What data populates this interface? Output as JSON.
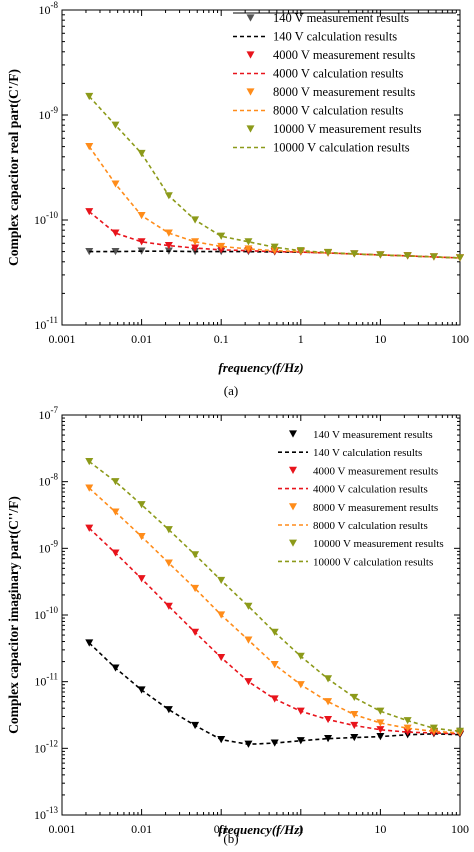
{
  "chart_data": [
    {
      "type": "scatter",
      "panel_caption": "(a)",
      "xlabel": "frequency(f/Hz)",
      "ylabel": "Complex capacitor real part(C'/F)",
      "xscale": "log",
      "yscale": "log",
      "xlim": [
        0.001,
        100
      ],
      "ylim": [
        1e-11,
        1e-08
      ],
      "x_tick_labels": [
        "0.001",
        "0.01",
        "0.1",
        "1",
        "10",
        "100"
      ],
      "y_tick_labels": [
        {
          "base": "10",
          "exp": "-8"
        },
        {
          "base": "10",
          "exp": "-9"
        },
        {
          "base": "10",
          "exp": "-10"
        },
        {
          "base": "10",
          "exp": "-11"
        }
      ],
      "legend_position": "top-right",
      "x": [
        0.0022,
        0.0047,
        0.01,
        0.022,
        0.047,
        0.1,
        0.22,
        0.47,
        1,
        2.2,
        4.7,
        10,
        22,
        47,
        100
      ],
      "series": [
        {
          "name": "140 V measurement results",
          "kind": "marker",
          "color": "#555555",
          "values": [
            5e-11,
            5e-11,
            5.05e-11,
            5.05e-11,
            5e-11,
            5e-11,
            5e-11,
            4.95e-11,
            4.95e-11,
            4.85e-11,
            4.75e-11,
            4.65e-11,
            4.55e-11,
            4.45e-11,
            4.35e-11
          ]
        },
        {
          "name": "140 V calculation results",
          "kind": "line",
          "color": "#000000",
          "values": [
            5e-11,
            5e-11,
            5.05e-11,
            5.05e-11,
            5e-11,
            5e-11,
            5e-11,
            4.95e-11,
            4.95e-11,
            4.85e-11,
            4.75e-11,
            4.65e-11,
            4.55e-11,
            4.45e-11,
            4.35e-11
          ]
        },
        {
          "name": "4000 V measurement results",
          "kind": "marker",
          "color": "#e8141c",
          "values": [
            1.2e-10,
            7.5e-11,
            6.2e-11,
            5.7e-11,
            5.4e-11,
            5.2e-11,
            5.1e-11,
            5e-11,
            4.95e-11,
            4.85e-11,
            4.75e-11,
            4.65e-11,
            4.55e-11,
            4.45e-11,
            4.35e-11
          ]
        },
        {
          "name": "4000 V calculation results",
          "kind": "line",
          "color": "#e8141c",
          "values": [
            1.2e-10,
            7.5e-11,
            6.2e-11,
            5.7e-11,
            5.4e-11,
            5.2e-11,
            5.1e-11,
            5e-11,
            4.95e-11,
            4.85e-11,
            4.75e-11,
            4.65e-11,
            4.55e-11,
            4.45e-11,
            4.35e-11
          ]
        },
        {
          "name": "8000 V measurement results",
          "kind": "marker",
          "color": "#ff8c1a",
          "values": [
            5e-10,
            2.2e-10,
            1.1e-10,
            7.5e-11,
            6.2e-11,
            5.6e-11,
            5.3e-11,
            5.1e-11,
            5e-11,
            4.85e-11,
            4.75e-11,
            4.65e-11,
            4.55e-11,
            4.45e-11,
            4.35e-11
          ]
        },
        {
          "name": "8000 V calculation results",
          "kind": "line",
          "color": "#ff8c1a",
          "values": [
            5e-10,
            2.2e-10,
            1.1e-10,
            7.5e-11,
            6.2e-11,
            5.6e-11,
            5.3e-11,
            5.1e-11,
            5e-11,
            4.85e-11,
            4.75e-11,
            4.65e-11,
            4.55e-11,
            4.45e-11,
            4.35e-11
          ]
        },
        {
          "name": "10000 V measurement results",
          "kind": "marker",
          "color": "#8c9a1a",
          "values": [
            1.5e-09,
            8e-10,
            4.3e-10,
            1.7e-10,
            1e-10,
            7e-11,
            6.2e-11,
            5.5e-11,
            5.1e-11,
            4.9e-11,
            4.75e-11,
            4.65e-11,
            4.55e-11,
            4.45e-11,
            4.35e-11
          ]
        },
        {
          "name": "10000 V calculation results",
          "kind": "line",
          "color": "#8c9a1a",
          "values": [
            1.5e-09,
            8e-10,
            4.3e-10,
            1.7e-10,
            1e-10,
            7e-11,
            6.2e-11,
            5.5e-11,
            5.1e-11,
            4.9e-11,
            4.75e-11,
            4.65e-11,
            4.55e-11,
            4.45e-11,
            4.35e-11
          ]
        }
      ]
    },
    {
      "type": "scatter",
      "panel_caption": "(b)",
      "xlabel": "frequency(f/Hz)",
      "ylabel": "Complex capacitor imaginary part(C''/F)",
      "xscale": "log",
      "yscale": "log",
      "xlim": [
        0.001,
        100
      ],
      "ylim": [
        1e-13,
        1e-07
      ],
      "x_tick_labels": [
        "0.001",
        "0.01",
        "0.1",
        "1",
        "10",
        "100"
      ],
      "y_tick_labels": [
        {
          "base": "10",
          "exp": "-7"
        },
        {
          "base": "10",
          "exp": "-8"
        },
        {
          "base": "10",
          "exp": "-9"
        },
        {
          "base": "10",
          "exp": "-10"
        },
        {
          "base": "10",
          "exp": "-11"
        },
        {
          "base": "10",
          "exp": "-12"
        },
        {
          "base": "10",
          "exp": "-13"
        }
      ],
      "legend_position": "top-right",
      "x": [
        0.0022,
        0.0047,
        0.01,
        0.022,
        0.047,
        0.1,
        0.22,
        0.47,
        1,
        2.2,
        4.7,
        10,
        22,
        47,
        100
      ],
      "series": [
        {
          "name": "140 V measurement results",
          "kind": "marker",
          "color": "#000000",
          "values": [
            3.8e-11,
            1.6e-11,
            7.5e-12,
            3.8e-12,
            2.2e-12,
            1.35e-12,
            1.15e-12,
            1.2e-12,
            1.3e-12,
            1.4e-12,
            1.45e-12,
            1.5e-12,
            1.6e-12,
            1.65e-12,
            1.6e-12
          ]
        },
        {
          "name": "140 V calculation results",
          "kind": "line",
          "color": "#000000",
          "values": [
            3.8e-11,
            1.6e-11,
            7.5e-12,
            3.8e-12,
            2.2e-12,
            1.35e-12,
            1.15e-12,
            1.2e-12,
            1.3e-12,
            1.4e-12,
            1.45e-12,
            1.5e-12,
            1.6e-12,
            1.65e-12,
            1.6e-12
          ]
        },
        {
          "name": "4000 V measurement results",
          "kind": "marker",
          "color": "#e8141c",
          "values": [
            2e-09,
            8.5e-10,
            3.5e-10,
            1.35e-10,
            5.5e-11,
            2.3e-11,
            1e-11,
            5.5e-12,
            3.6e-12,
            2.7e-12,
            2.2e-12,
            1.9e-12,
            1.75e-12,
            1.7e-12,
            1.65e-12
          ]
        },
        {
          "name": "4000 V calculation results",
          "kind": "line",
          "color": "#e8141c",
          "values": [
            2e-09,
            8.5e-10,
            3.5e-10,
            1.35e-10,
            5.5e-11,
            2.3e-11,
            1e-11,
            5.5e-12,
            3.6e-12,
            2.7e-12,
            2.2e-12,
            1.9e-12,
            1.75e-12,
            1.7e-12,
            1.65e-12
          ]
        },
        {
          "name": "8000 V measurement results",
          "kind": "marker",
          "color": "#ff8c1a",
          "values": [
            8e-09,
            3.5e-09,
            1.5e-09,
            6e-10,
            2.5e-10,
            1e-10,
            4.2e-11,
            1.8e-11,
            9e-12,
            5e-12,
            3.2e-12,
            2.4e-12,
            2e-12,
            1.8e-12,
            1.7e-12
          ]
        },
        {
          "name": "8000 V calculation results",
          "kind": "line",
          "color": "#ff8c1a",
          "values": [
            8e-09,
            3.5e-09,
            1.5e-09,
            6e-10,
            2.5e-10,
            1e-10,
            4.2e-11,
            1.8e-11,
            9e-12,
            5e-12,
            3.2e-12,
            2.4e-12,
            2e-12,
            1.8e-12,
            1.7e-12
          ]
        },
        {
          "name": "10000 V measurement results",
          "kind": "marker",
          "color": "#8c9a1a",
          "values": [
            2e-08,
            1e-08,
            4.5e-09,
            1.9e-09,
            8e-10,
            3.3e-10,
            1.35e-10,
            5.5e-11,
            2.4e-11,
            1.1e-11,
            5.8e-12,
            3.6e-12,
            2.6e-12,
            2e-12,
            1.8e-12
          ]
        },
        {
          "name": "10000 V calculation results",
          "kind": "line",
          "color": "#8c9a1a",
          "values": [
            2e-08,
            1e-08,
            4.5e-09,
            1.9e-09,
            8e-10,
            3.3e-10,
            1.35e-10,
            5.5e-11,
            2.4e-11,
            1.1e-11,
            5.8e-12,
            3.6e-12,
            2.6e-12,
            2e-12,
            1.8e-12
          ]
        }
      ]
    }
  ]
}
